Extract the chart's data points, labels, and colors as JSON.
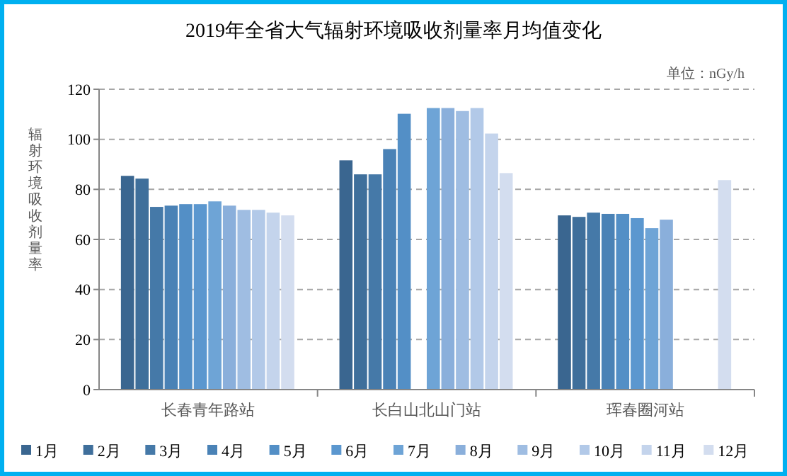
{
  "chart_data": {
    "type": "bar",
    "title": "2019年全省大气辐射环境吸收剂量率月均值变化",
    "ylabel": "辐射环境吸收剂量率",
    "annotations": [
      "单位：nGy/h"
    ],
    "categories": [
      "长春青年路站",
      "长白山北山门站",
      "珲春圈河站"
    ],
    "ylim": [
      0,
      120
    ],
    "yticks": [
      0,
      20,
      40,
      60,
      80,
      100,
      120
    ],
    "grid": "y",
    "legend": "bottom",
    "series": [
      {
        "name": "1月",
        "color": "#3a6690",
        "values": [
          85.4,
          91.6,
          69.6
        ]
      },
      {
        "name": "2月",
        "color": "#3f6f9b",
        "values": [
          84.3,
          86.0,
          69.0
        ]
      },
      {
        "name": "3月",
        "color": "#4579a8",
        "values": [
          73.0,
          86.0,
          70.7
        ]
      },
      {
        "name": "4月",
        "color": "#4a82b6",
        "values": [
          73.5,
          96.1,
          70.2
        ]
      },
      {
        "name": "5月",
        "color": "#538fc6",
        "values": [
          74.1,
          110.2,
          70.2
        ]
      },
      {
        "name": "6月",
        "color": "#5b97cf",
        "values": [
          74.1,
          null,
          68.5
        ]
      },
      {
        "name": "7月",
        "color": "#6ea4d6",
        "values": [
          75.2,
          112.5,
          64.5
        ]
      },
      {
        "name": "8月",
        "color": "#8aafdb",
        "values": [
          73.5,
          112.5,
          67.9
        ]
      },
      {
        "name": "9月",
        "color": "#9fbde2",
        "values": [
          71.8,
          111.3,
          null
        ]
      },
      {
        "name": "10月",
        "color": "#b2c9e8",
        "values": [
          71.8,
          112.5,
          null
        ]
      },
      {
        "name": "11月",
        "color": "#c4d4ec",
        "values": [
          70.7,
          102.3,
          null
        ]
      },
      {
        "name": "12月",
        "color": "#d3ddef",
        "values": [
          69.6,
          86.5,
          83.7
        ]
      }
    ]
  }
}
